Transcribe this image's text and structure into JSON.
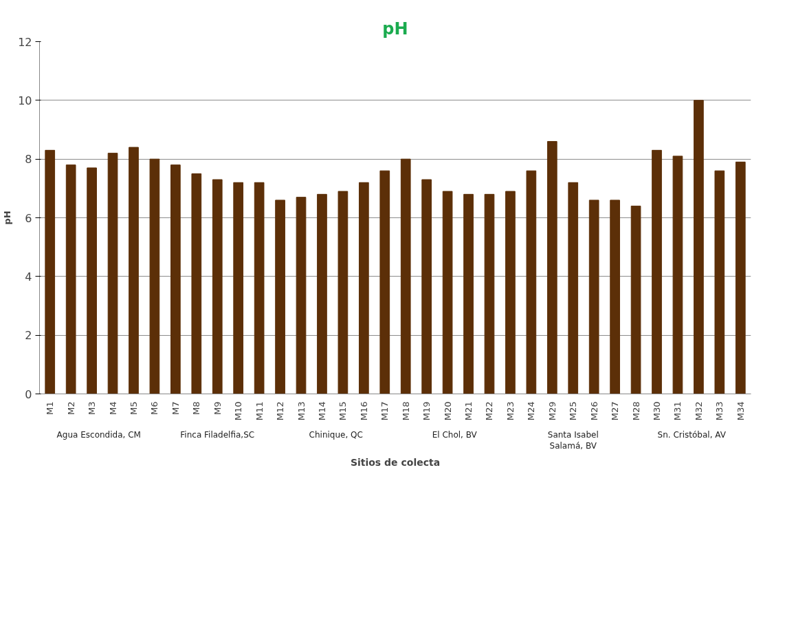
{
  "chart_data": {
    "type": "bar",
    "title": "pH",
    "xlabel": "Sitios de colecta",
    "ylabel": "pH",
    "categories": [
      "M1",
      "M2",
      "M3",
      "M4",
      "M5",
      "M6",
      "M7",
      "M8",
      "M9",
      "M10",
      "M11",
      "M12",
      "M13",
      "M14",
      "M15",
      "M16",
      "M17",
      "M18",
      "M19",
      "M20",
      "M21",
      "M22",
      "M23",
      "M24",
      "M29",
      "M25",
      "M26",
      "M27",
      "M28",
      "M30",
      "M31",
      "M32",
      "M33",
      "M34"
    ],
    "values": [
      8.3,
      7.8,
      7.7,
      8.2,
      8.4,
      8.0,
      7.8,
      7.5,
      7.3,
      7.2,
      7.2,
      6.6,
      6.7,
      6.8,
      6.9,
      7.2,
      7.6,
      8.0,
      7.3,
      6.9,
      6.8,
      6.8,
      6.9,
      7.6,
      8.6,
      7.2,
      6.6,
      6.6,
      6.4,
      8.3,
      8.1,
      10.0,
      7.6,
      7.9
    ],
    "color": "#5c2f08",
    "ylim": [
      0,
      12
    ],
    "yticks": [
      0,
      2,
      4,
      6,
      8,
      10,
      12
    ],
    "grid": "y",
    "annotations": [
      "Agua Escondida, CM",
      "Finca Filadelfia,SC",
      "Chinique, QC",
      "El Chol, BV",
      "Santa Isabel Salamá, BV",
      "Sn. Cristóbal, AV"
    ]
  }
}
